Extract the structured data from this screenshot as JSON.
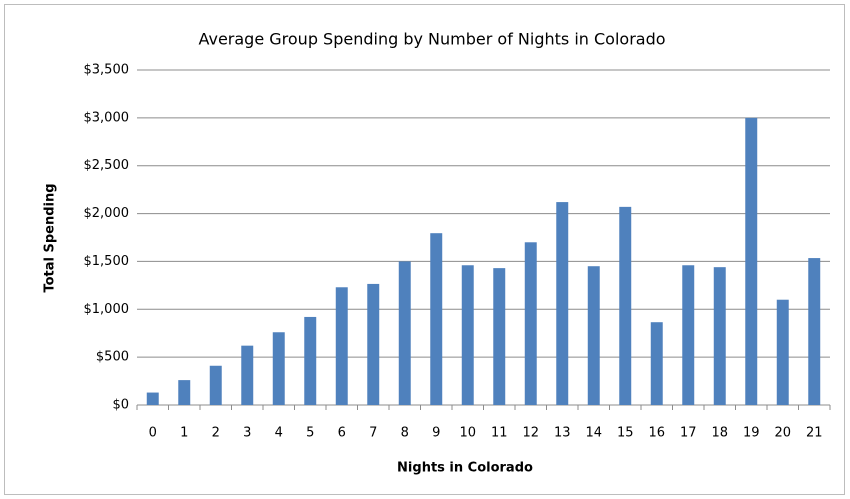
{
  "chart_data": {
    "type": "bar",
    "title": "Average Group Spending by Number of Nights in Colorado",
    "x_label": "Nights in Colorado",
    "y_label": "Total Spending",
    "categories": [
      "0",
      "1",
      "2",
      "3",
      "4",
      "5",
      "6",
      "7",
      "8",
      "9",
      "10",
      "11",
      "12",
      "13",
      "14",
      "15",
      "16",
      "17",
      "18",
      "19",
      "20",
      "21"
    ],
    "values": [
      130,
      260,
      410,
      620,
      760,
      920,
      1230,
      1265,
      1500,
      1795,
      1460,
      1430,
      1700,
      2120,
      1450,
      2070,
      865,
      1460,
      1440,
      3000,
      1100,
      1535
    ],
    "color": "#4f81bd",
    "ylim": [
      0,
      3500
    ],
    "yticks": [
      {
        "value": 0,
        "label": "$0"
      },
      {
        "value": 500,
        "label": "$500"
      },
      {
        "value": 1000,
        "label": "$1,000"
      },
      {
        "value": 1500,
        "label": "$1,500"
      },
      {
        "value": 2000,
        "label": "$2,000"
      },
      {
        "value": 2500,
        "label": "$2,500"
      },
      {
        "value": 3000,
        "label": "$3,000"
      },
      {
        "value": 3500,
        "label": "$3,500"
      }
    ],
    "grid": true
  }
}
